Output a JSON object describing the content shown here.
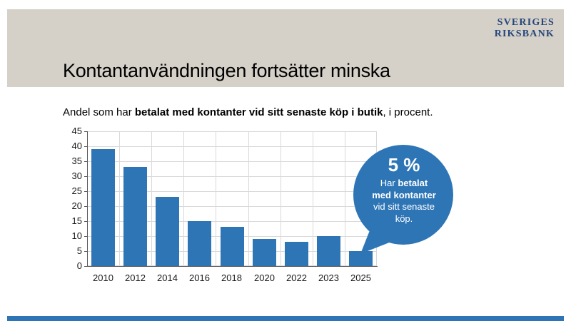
{
  "header": {
    "band_color": "#d5d1c8",
    "title": "Kontantanvändningen fortsätter minska",
    "logo_line1": "SVERIGES",
    "logo_line2": "RIKSBANK",
    "logo_color": "#26457b"
  },
  "subtitle": {
    "prefix": "Andel som har ",
    "bold": "betalat med kontanter vid sitt senaste köp i butik",
    "suffix": ", i procent."
  },
  "chart_data": {
    "type": "bar",
    "title": "Andel som har betalat med kontanter vid sitt senaste köp i butik, i procent",
    "categories": [
      "2010",
      "2012",
      "2014",
      "2016",
      "2018",
      "2020",
      "2022",
      "2023",
      "2025"
    ],
    "values": [
      39,
      33,
      23,
      15,
      13,
      9,
      8,
      10,
      5
    ],
    "xlabel": "",
    "ylabel": "",
    "ylim": [
      0,
      45
    ],
    "ytick_step": 5,
    "grid": true,
    "legend": "none",
    "bar_color": "#2e75b6",
    "gridline_color": "#d9d9d9",
    "axis_color": "#595959"
  },
  "callout": {
    "value_label": "5 %",
    "l1_pre": "Har ",
    "l1_bold": "betalat",
    "l2_bold": "med kontanter",
    "l3": "vid sitt senaste",
    "l4": "köp.",
    "bubble_color": "#2e75b6",
    "text_color": "#ffffff"
  },
  "footer": {
    "bar_color": "#2e75b6"
  }
}
